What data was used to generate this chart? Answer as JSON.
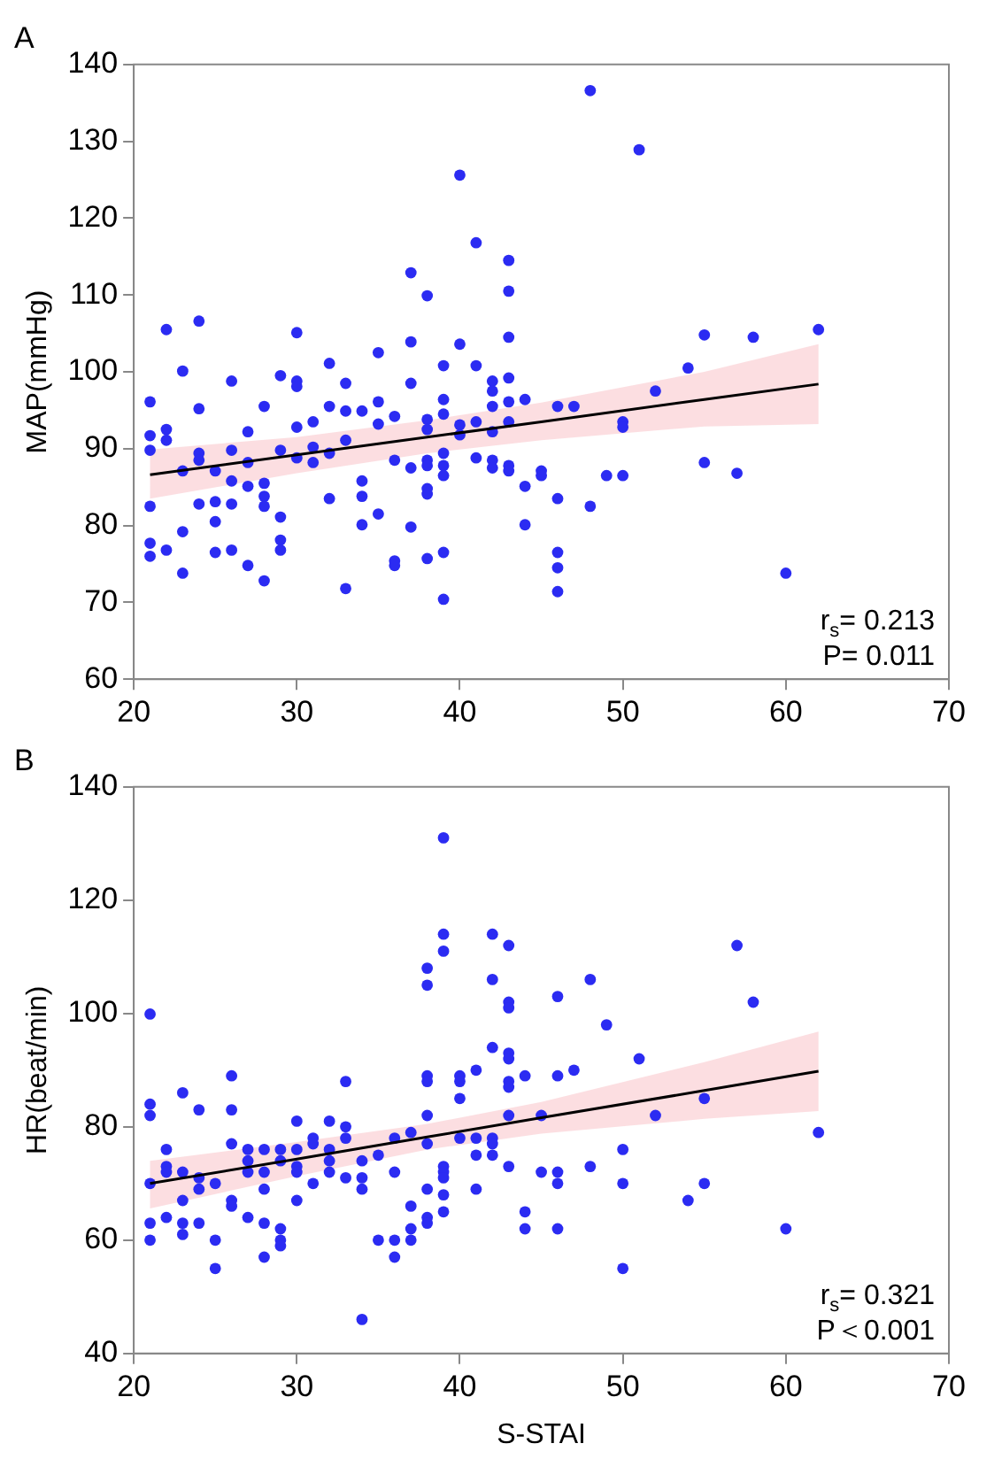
{
  "chart_data": [
    {
      "type": "scatter",
      "title": "A",
      "ylabel": "MAP(mmHg)",
      "xlim": [
        20,
        70
      ],
      "ylim": [
        60,
        140
      ],
      "xticks": [
        20,
        30,
        40,
        50,
        60,
        70
      ],
      "yticks": [
        60,
        70,
        80,
        90,
        100,
        110,
        120,
        130,
        140
      ],
      "grid": false,
      "annotations": [
        "r$_{s}$= 0.213",
        "P= 0.011"
      ],
      "series": [
        {
          "marker": "circle",
          "color": "#2b2bf2",
          "x": [
            21,
            21,
            21,
            21,
            21,
            21,
            22,
            22,
            22,
            22,
            23,
            23,
            23,
            23,
            24,
            24,
            24,
            24,
            24,
            25,
            25,
            25,
            25,
            26,
            26,
            26,
            26,
            26,
            27,
            27,
            27,
            27,
            28,
            28,
            28,
            28,
            28,
            29,
            29,
            29,
            29,
            29,
            30,
            30,
            30,
            30,
            30,
            31,
            31,
            31,
            32,
            32,
            32,
            32,
            33,
            33,
            33,
            33,
            34,
            34,
            34,
            34,
            35,
            35,
            35,
            35,
            36,
            36,
            36,
            36,
            37,
            37,
            37,
            37,
            37,
            38,
            38,
            38,
            38,
            38,
            38,
            38,
            38,
            39,
            39,
            39,
            39,
            39,
            39,
            39,
            39,
            40,
            40,
            40,
            40,
            41,
            41,
            41,
            41,
            42,
            42,
            42,
            42,
            42,
            42,
            43,
            43,
            43,
            43,
            43,
            43,
            43,
            43,
            44,
            44,
            44,
            45,
            45,
            46,
            46,
            46,
            46,
            46,
            47,
            48,
            48,
            49,
            50,
            50,
            50,
            51,
            52,
            54,
            55,
            55,
            57,
            58,
            60,
            62
          ],
          "values": [
            96.1,
            91.7,
            89.8,
            82.5,
            77.7,
            76,
            105.5,
            92.5,
            91.1,
            76.8,
            100.1,
            87.1,
            79.2,
            73.8,
            106.6,
            95.2,
            89.4,
            88.5,
            82.8,
            87.1,
            83.1,
            80.5,
            76.5,
            98.8,
            89.8,
            85.8,
            82.8,
            76.8,
            92.2,
            88.2,
            85.1,
            74.8,
            95.5,
            85.5,
            83.8,
            82.5,
            72.8,
            99.5,
            89.8,
            81.1,
            78.1,
            76.8,
            105.1,
            98.8,
            98.1,
            92.8,
            88.8,
            93.5,
            90.2,
            88.2,
            101.1,
            95.5,
            89.4,
            83.5,
            98.5,
            94.9,
            91.1,
            71.8,
            94.9,
            85.8,
            83.8,
            80.1,
            102.5,
            96.1,
            93.2,
            81.5,
            94.2,
            88.5,
            75.4,
            74.8,
            112.9,
            103.9,
            98.5,
            87.5,
            79.8,
            109.9,
            93.8,
            92.5,
            88.5,
            87.8,
            84.8,
            84.1,
            75.7,
            100.8,
            96.4,
            94.5,
            89.4,
            87.8,
            86.5,
            76.5,
            70.4,
            125.6,
            103.6,
            93.1,
            91.8,
            116.8,
            100.8,
            93.5,
            88.8,
            98.8,
            97.5,
            95.5,
            92.2,
            88.5,
            87.5,
            114.5,
            110.5,
            104.5,
            99.2,
            96.1,
            93.5,
            87.8,
            87.1,
            96.4,
            85.1,
            80.1,
            87.1,
            86.5,
            95.5,
            83.5,
            76.5,
            74.5,
            71.4,
            95.5,
            136.6,
            82.5,
            86.5,
            93.5,
            92.8,
            86.5,
            128.9,
            97.5,
            100.5,
            104.8,
            88.2,
            86.8,
            104.5,
            73.8,
            105.5
          ]
        },
        {
          "type": "line",
          "color": "#000000",
          "x": [
            21,
            30,
            38,
            45,
            55,
            62
          ],
          "values": [
            86.6,
            89.2,
            91.5,
            93.5,
            96.4,
            98.4
          ],
          "lower": [
            83.5,
            86.8,
            89.4,
            91.1,
            92.9,
            93.2
          ],
          "upper": [
            89.9,
            91.5,
            93.7,
            96.0,
            100.0,
            103.6
          ]
        }
      ]
    },
    {
      "type": "scatter",
      "title": "B",
      "xlabel": "S-STAI",
      "ylabel": "HR(beat/min)",
      "xlim": [
        20,
        70
      ],
      "ylim": [
        40,
        140
      ],
      "xticks": [
        20,
        30,
        40,
        50,
        60,
        70
      ],
      "yticks": [
        40,
        60,
        80,
        100,
        120,
        140
      ],
      "grid": false,
      "annotations": [
        "r$_{s}$= 0.321",
        "P＜0.001"
      ],
      "series": [
        {
          "marker": "circle",
          "color": "#2b2bf2",
          "x": [
            21,
            21,
            21,
            21,
            21,
            21,
            22,
            22,
            22,
            22,
            23,
            23,
            23,
            23,
            23,
            24,
            24,
            24,
            24,
            25,
            25,
            25,
            26,
            26,
            26,
            26,
            26,
            27,
            27,
            27,
            27,
            28,
            28,
            28,
            28,
            28,
            29,
            29,
            29,
            29,
            29,
            30,
            30,
            30,
            30,
            30,
            31,
            31,
            31,
            32,
            32,
            32,
            32,
            33,
            33,
            33,
            33,
            34,
            34,
            34,
            34,
            35,
            35,
            36,
            36,
            36,
            36,
            37,
            37,
            37,
            37,
            38,
            38,
            38,
            38,
            38,
            38,
            38,
            38,
            38,
            39,
            39,
            39,
            39,
            39,
            39,
            39,
            39,
            40,
            40,
            40,
            40,
            41,
            41,
            41,
            41,
            42,
            42,
            42,
            42,
            42,
            42,
            43,
            43,
            43,
            43,
            43,
            43,
            43,
            43,
            43,
            44,
            44,
            44,
            45,
            45,
            46,
            46,
            46,
            46,
            46,
            47,
            48,
            48,
            49,
            50,
            50,
            50,
            51,
            52,
            54,
            55,
            55,
            57,
            58,
            60,
            62
          ],
          "values": [
            99.9,
            84,
            82,
            70,
            63,
            60,
            76,
            73,
            72,
            64,
            86,
            72,
            67,
            63,
            61,
            83,
            71,
            69,
            63,
            70,
            60,
            55,
            89,
            83,
            77,
            67,
            66,
            76,
            74,
            72,
            64,
            76,
            72,
            69,
            63,
            57,
            76,
            74,
            62,
            60,
            59,
            81,
            76,
            73,
            72,
            67,
            78,
            77,
            70,
            81,
            76,
            74,
            72,
            88,
            80,
            78,
            71,
            74,
            71,
            69,
            46,
            75,
            60,
            78,
            72,
            60,
            57,
            79,
            66,
            62,
            60,
            108,
            105,
            89,
            88,
            82,
            77,
            69,
            64,
            63,
            131,
            114,
            111,
            73,
            72,
            71,
            68,
            65,
            89,
            88,
            85,
            78,
            90,
            78,
            75,
            69,
            114,
            106,
            94,
            78,
            77,
            75,
            112,
            102,
            101,
            93,
            92,
            88,
            87,
            82,
            73,
            89,
            65,
            62,
            82,
            72,
            103,
            89,
            72,
            70,
            62,
            90,
            106,
            73,
            98,
            76,
            70,
            55,
            92,
            82,
            67,
            85,
            70,
            112,
            102,
            62,
            79
          ]
        },
        {
          "type": "line",
          "color": "#000000",
          "x": [
            21,
            30,
            38,
            45,
            55,
            62
          ],
          "values": [
            70.0,
            74.3,
            78.2,
            81.6,
            86.4,
            89.8
          ],
          "lower": [
            65.6,
            71.3,
            76.0,
            78.8,
            81.4,
            82.8
          ],
          "upper": [
            74.0,
            77.3,
            80.5,
            84.4,
            91.4,
            96.8
          ]
        }
      ]
    }
  ]
}
